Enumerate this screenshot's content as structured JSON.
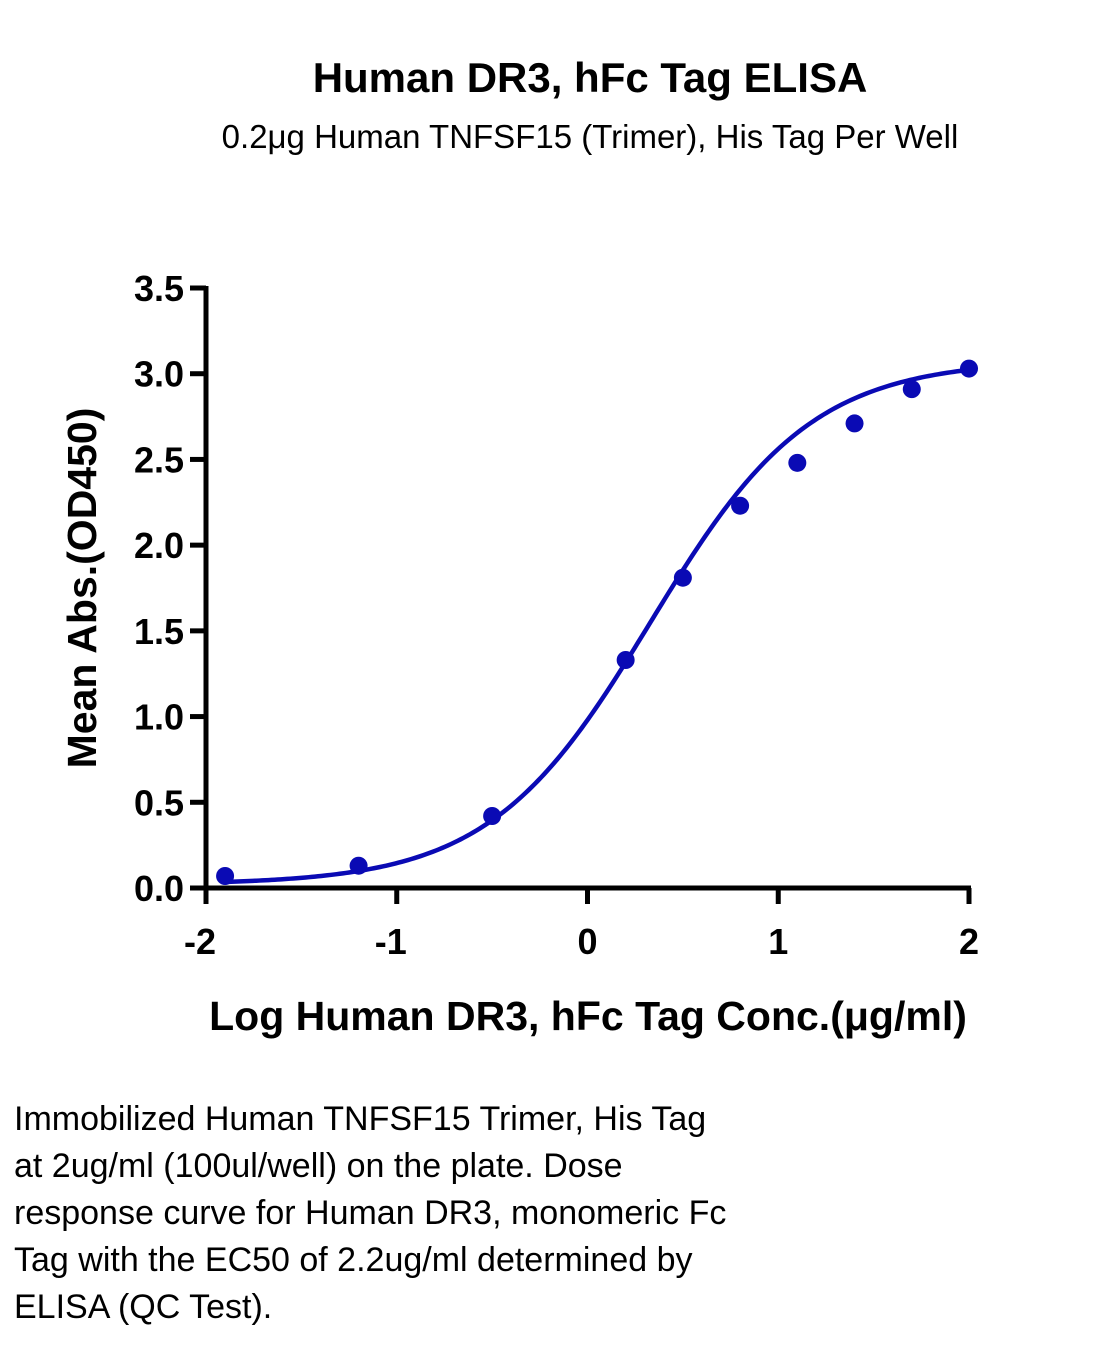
{
  "chart_data": {
    "type": "scatter",
    "title": "Human DR3, hFc Tag ELISA",
    "subtitle": "0.2μg Human TNFSF15 (Trimer), His Tag Per Well",
    "xlabel": "Log Human DR3, hFc Tag Conc.(μg/ml)",
    "ylabel": "Mean Abs.(OD450)",
    "xlim": [
      -2,
      2
    ],
    "ylim": [
      0,
      3.5
    ],
    "x_ticks": [
      "-2",
      "-1",
      "0",
      "1",
      "2"
    ],
    "y_ticks": [
      "0.0",
      "0.5",
      "1.0",
      "1.5",
      "2.0",
      "2.5",
      "3.0",
      "3.5"
    ],
    "series": [
      {
        "x": [
          -1.9,
          -1.2,
          -0.5,
          0.2,
          0.5,
          0.8,
          1.1,
          1.4,
          1.7,
          2.0
        ],
        "y": [
          0.07,
          0.13,
          0.42,
          1.33,
          1.81,
          2.23,
          2.48,
          2.71,
          2.91,
          3.03
        ],
        "color": "#0A0AB4",
        "fit": "sigmoidal dose-response curve"
      }
    ],
    "grid": false,
    "legend": "none"
  },
  "caption": "Immobilized Human TNFSF15 Trimer, His Tag\nat 2ug/ml (100ul/well) on the plate. Dose\nresponse curve for Human DR3, monomeric Fc\nTag with the EC50 of 2.2ug/ml determined by\nELISA (QC Test)."
}
